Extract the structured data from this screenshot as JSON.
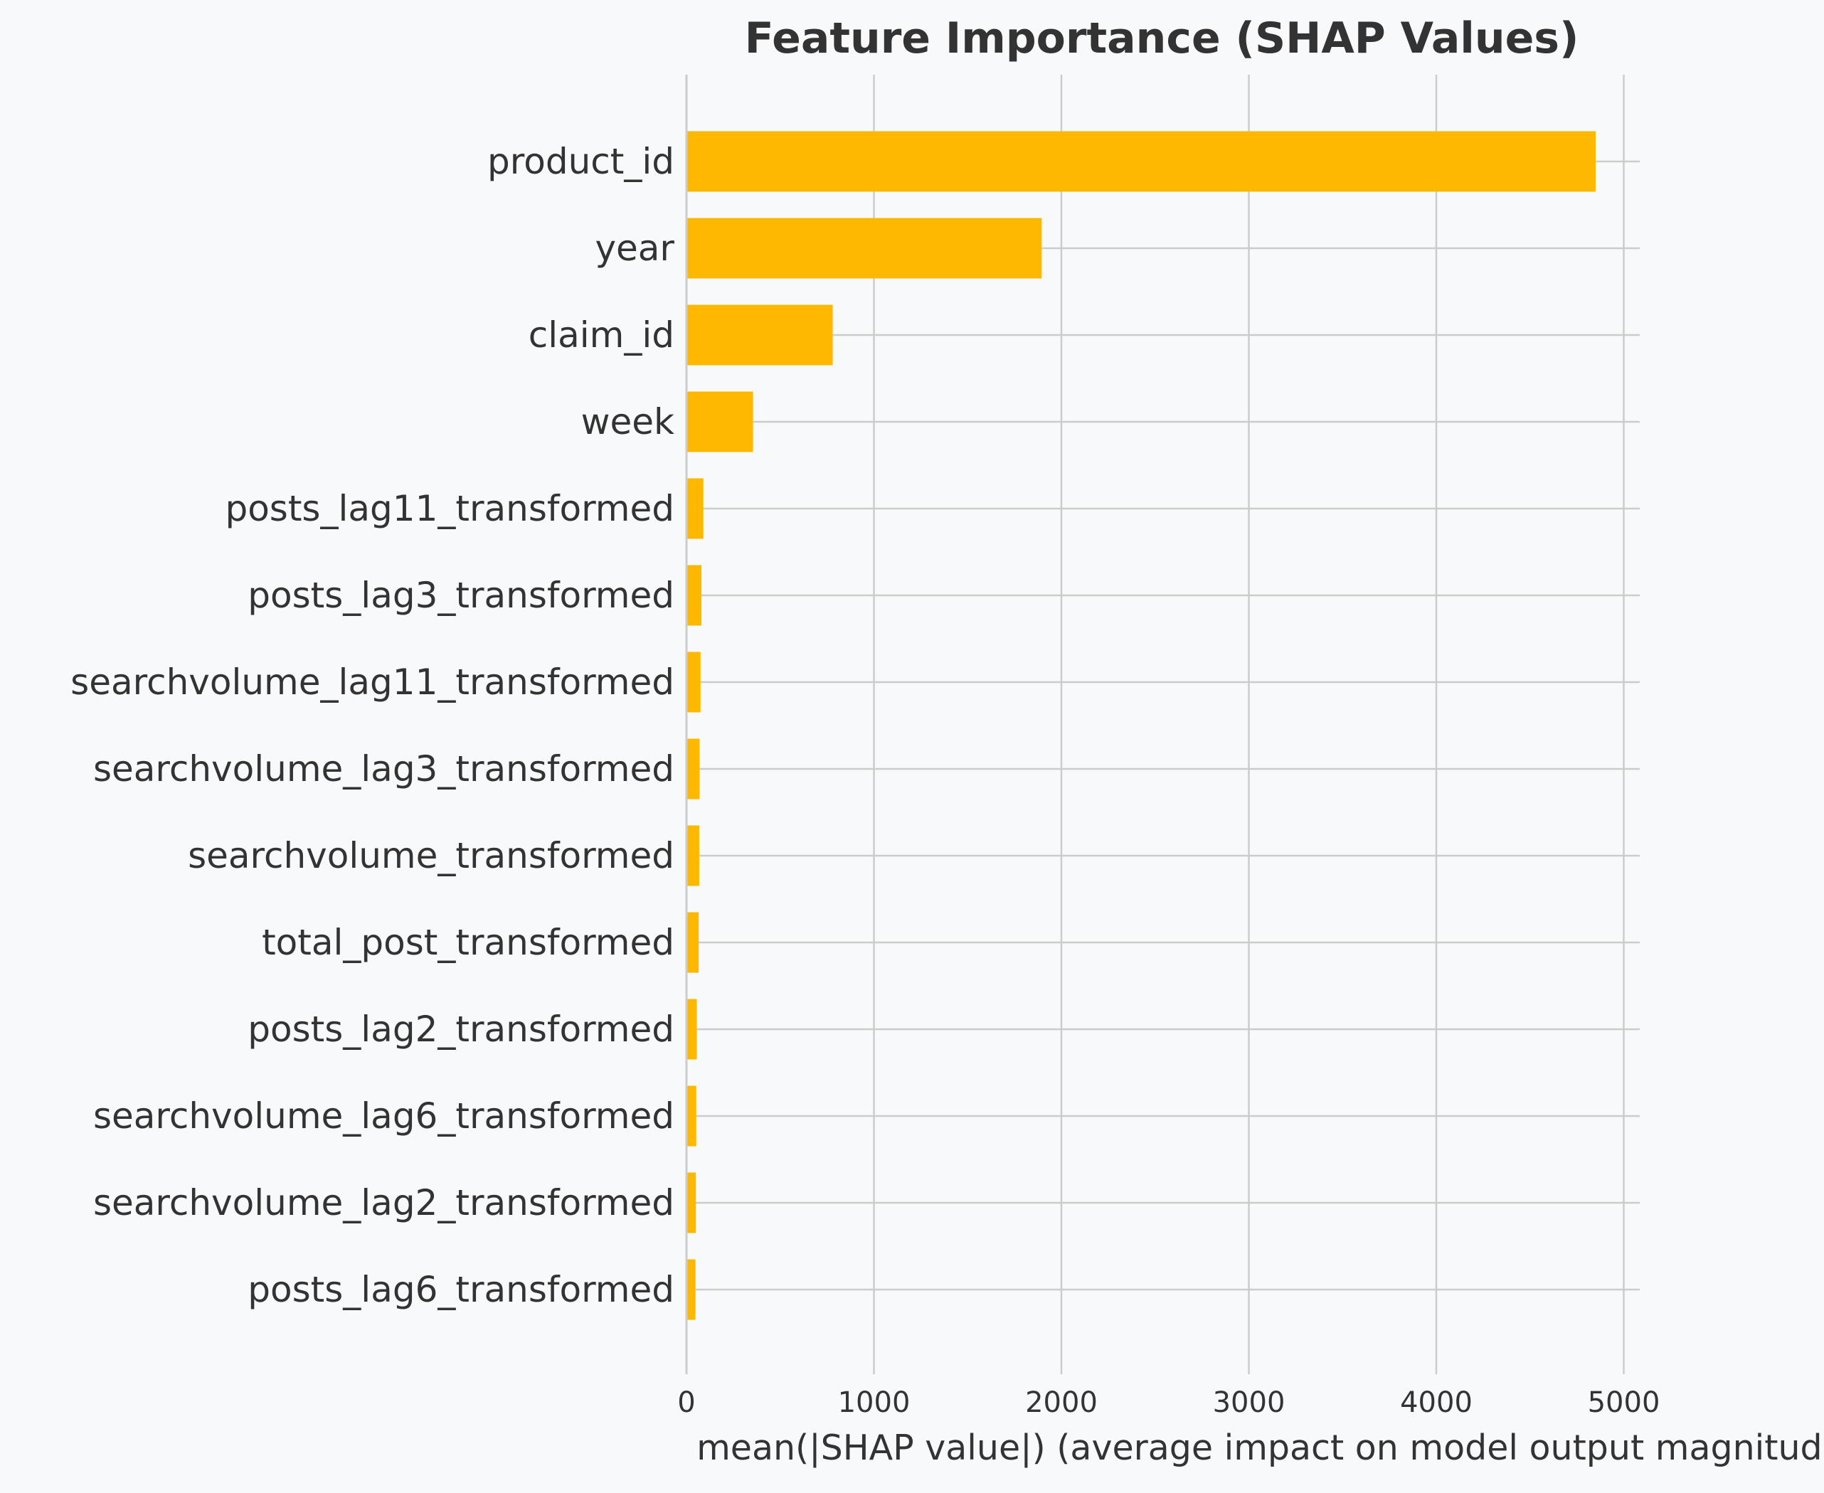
{
  "chart_data": {
    "type": "bar",
    "orientation": "horizontal",
    "title": "Feature Importance (SHAP Values)",
    "xlabel": "mean(|SHAP value|) (average impact on model output magnitude)",
    "ylabel": "",
    "xlim": [
      0,
      5100
    ],
    "xticks": [
      0,
      1000,
      2000,
      3000,
      4000,
      5000
    ],
    "xtick_labels": [
      "0",
      "1000",
      "2000",
      "3000",
      "4000",
      "5000"
    ],
    "grid": true,
    "categories": [
      "product_id",
      "year",
      "claim_id",
      "week",
      "posts_lag11_transformed",
      "posts_lag3_transformed",
      "searchvolume_lag11_transformed",
      "searchvolume_lag3_transformed",
      "searchvolume_transformed",
      "total_post_transformed",
      "posts_lag2_transformed",
      "searchvolume_lag6_transformed",
      "searchvolume_lag2_transformed",
      "posts_lag6_transformed"
    ],
    "values": [
      4850,
      1895,
      780,
      355,
      90,
      80,
      75,
      70,
      68,
      65,
      55,
      52,
      50,
      48
    ]
  },
  "colors": {
    "bar": "#ffb800",
    "background": "#f8f9fa",
    "grid": "#cccccc",
    "text": "#333333"
  }
}
